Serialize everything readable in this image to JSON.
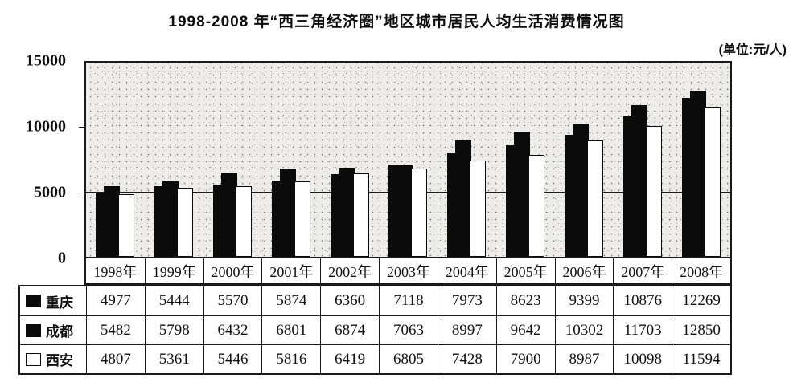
{
  "title": "1998-2008 年“西三角经济圈”地区城市居民人均生活消费情况图",
  "unit_label": "(单位:元/人)",
  "chart_data": {
    "type": "bar",
    "title": "1998-2008 年“西三角经济圈”地区城市居民人均生活消费情况图",
    "unit": "元/人",
    "categories": [
      "1998年",
      "1999年",
      "2000年",
      "2001年",
      "2002年",
      "2003年",
      "2004年",
      "2005年",
      "2006年",
      "2007年",
      "2008年"
    ],
    "series": [
      {
        "id": "chongqing",
        "name": "重庆",
        "color": "#0b0b0b",
        "values": [
          4977,
          5444,
          5570,
          5874,
          6360,
          7118,
          7973,
          8623,
          9399,
          10876,
          12269
        ]
      },
      {
        "id": "chengdu",
        "name": "成都",
        "color": "#0b0b0b",
        "values": [
          5482,
          5798,
          6432,
          6801,
          6874,
          7063,
          8997,
          9642,
          10302,
          11703,
          12850
        ]
      },
      {
        "id": "xian",
        "name": "西安",
        "color": "#ffffff",
        "values": [
          4807,
          5361,
          5446,
          5816,
          6419,
          6805,
          7428,
          7900,
          8987,
          10098,
          11594
        ]
      }
    ],
    "y_ticks": [
      0,
      5000,
      10000,
      15000
    ],
    "ylim": [
      0,
      15000
    ],
    "grid": true,
    "legend_position": "table-left",
    "plot_background": "#edece8",
    "gridline_color": "#1a1a1a"
  }
}
